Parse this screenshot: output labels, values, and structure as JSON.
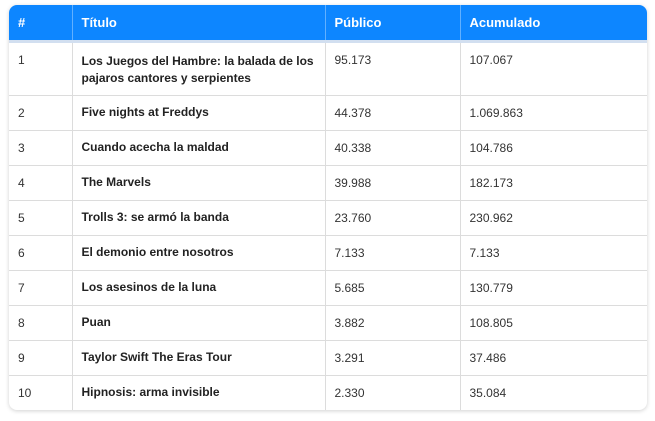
{
  "table": {
    "headers": {
      "num": "#",
      "title": "Título",
      "audience": "Público",
      "cumulative": "Acumulado"
    },
    "rows": [
      {
        "num": "1",
        "title": "Los Juegos del Hambre: la balada de los pajaros cantores y serpientes",
        "audience": "95.173",
        "cumulative": "107.067"
      },
      {
        "num": "2",
        "title": "Five nights at Freddys",
        "audience": "44.378",
        "cumulative": "1.069.863"
      },
      {
        "num": "3",
        "title": "Cuando acecha la maldad",
        "audience": "40.338",
        "cumulative": "104.786"
      },
      {
        "num": "4",
        "title": "The Marvels",
        "audience": "39.988",
        "cumulative": "182.173"
      },
      {
        "num": "5",
        "title": "Trolls 3: se armó la banda",
        "audience": "23.760",
        "cumulative": "230.962"
      },
      {
        "num": "6",
        "title": "El demonio entre nosotros",
        "audience": "7.133",
        "cumulative": "7.133"
      },
      {
        "num": "7",
        "title": "Los asesinos de la luna",
        "audience": "5.685",
        "cumulative": "130.779"
      },
      {
        "num": "8",
        "title": "Puan",
        "audience": "3.882",
        "cumulative": "108.805"
      },
      {
        "num": "9",
        "title": "Taylor Swift The Eras Tour",
        "audience": "3.291",
        "cumulative": "37.486"
      },
      {
        "num": "10",
        "title": "Hipnosis: arma invisible",
        "audience": "2.330",
        "cumulative": "35.084"
      }
    ]
  },
  "colors": {
    "header_bg": "#0d86ff",
    "header_text": "#ffffff"
  }
}
